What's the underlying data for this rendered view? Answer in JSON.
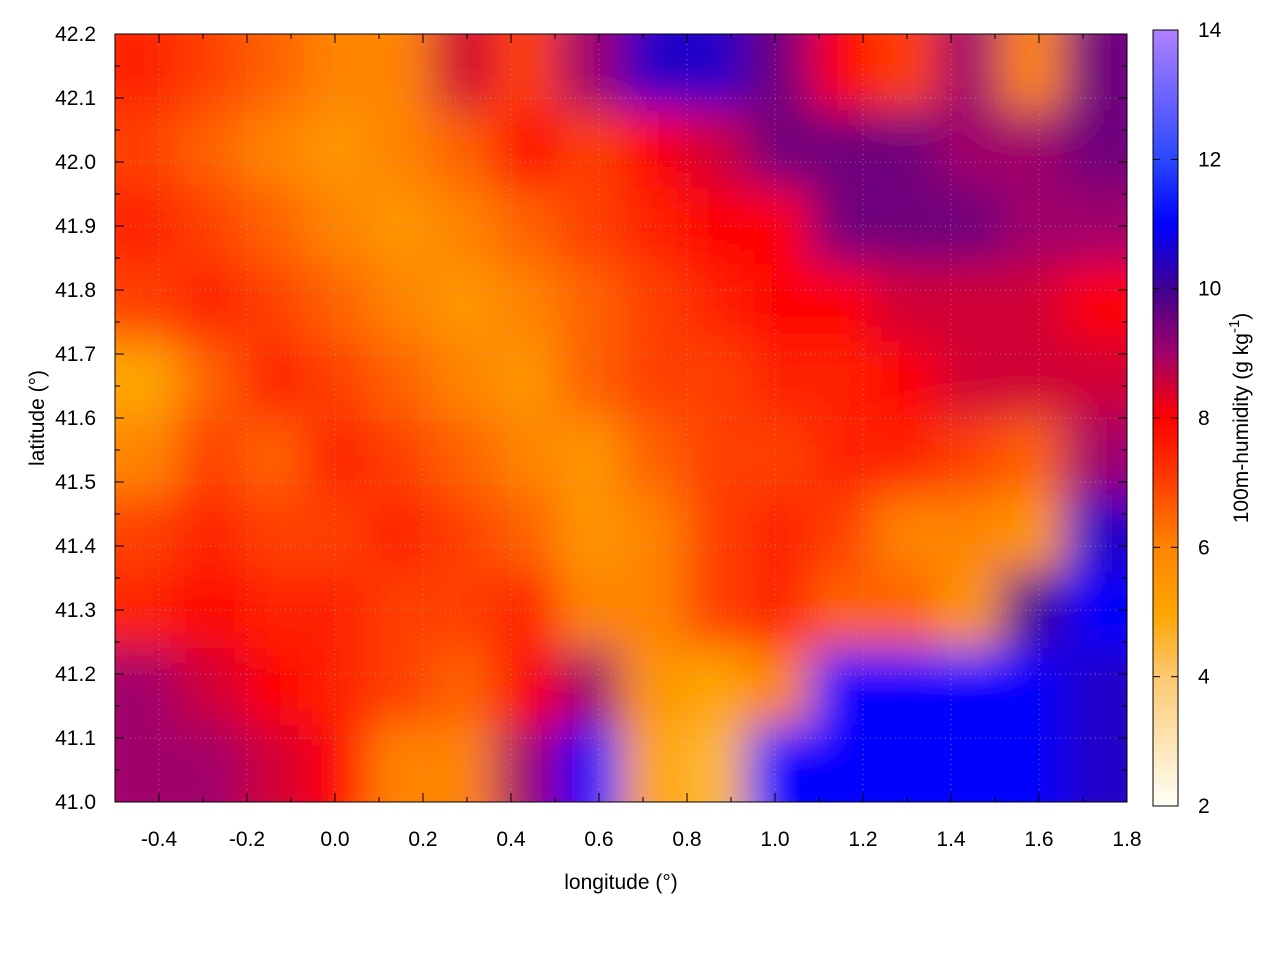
{
  "chart_data": {
    "type": "heatmap",
    "xlabel": "longitude (°)",
    "ylabel": "latitude (°)",
    "colorbar_label": "100m-humidity (g kg",
    "colorbar_label_sup": "-1",
    "colorbar_label_close": ")",
    "xlim": [
      -0.5,
      1.8
    ],
    "ylim": [
      41.0,
      42.2
    ],
    "clim": [
      2,
      14
    ],
    "xticks": [
      "-0.4",
      "-0.2",
      "0.0",
      "0.2",
      "0.4",
      "0.6",
      "0.8",
      "1.0",
      "1.2",
      "1.4",
      "1.6",
      "1.8"
    ],
    "yticks": [
      "41.0",
      "41.1",
      "41.2",
      "41.3",
      "41.4",
      "41.5",
      "41.6",
      "41.7",
      "41.8",
      "41.9",
      "42.0",
      "42.1",
      "42.2"
    ],
    "cticks": [
      "2",
      "4",
      "6",
      "8",
      "10",
      "12",
      "14"
    ],
    "grid": true,
    "contours": true,
    "palette": [
      {
        "v": 2,
        "color": "#fffff8"
      },
      {
        "v": 4,
        "color": "#fcc870"
      },
      {
        "v": 5,
        "color": "#ffa500"
      },
      {
        "v": 6,
        "color": "#ff8400"
      },
      {
        "v": 7,
        "color": "#ff4000"
      },
      {
        "v": 8,
        "color": "#ff0000"
      },
      {
        "v": 9,
        "color": "#a0006a"
      },
      {
        "v": 10,
        "color": "#400090"
      },
      {
        "v": 11,
        "color": "#0000ff"
      },
      {
        "v": 12,
        "color": "#2a48ff"
      },
      {
        "v": 14,
        "color": "#b080ff"
      }
    ],
    "grid_note_rows": "rows from north (42.2) to south (41.0), columns from west (-0.5) to east (1.8)",
    "values": [
      [
        7.5,
        7,
        6.5,
        6,
        6,
        8.5,
        7,
        9,
        10.5,
        10.5,
        9.5,
        8,
        7,
        9,
        6,
        9.5
      ],
      [
        7,
        6.5,
        6,
        5.5,
        6,
        6.5,
        8,
        7,
        8,
        8.5,
        9.5,
        9.5,
        9.5,
        9,
        9,
        9.5
      ],
      [
        7.5,
        7,
        6.5,
        6,
        5.5,
        6,
        6.5,
        7,
        7.5,
        8,
        8,
        9.5,
        9.5,
        9.5,
        9,
        9
      ],
      [
        7,
        7.5,
        7,
        6.5,
        6,
        5.5,
        6,
        6.5,
        7,
        7.5,
        8,
        8,
        8.5,
        8.5,
        8.5,
        8
      ],
      [
        5,
        6.5,
        7.5,
        7,
        6.5,
        6,
        5.5,
        6.5,
        7,
        7,
        7.5,
        7.5,
        8,
        8.5,
        8.5,
        8.5
      ],
      [
        6,
        7,
        6.5,
        7.5,
        7,
        6.5,
        6,
        5.5,
        6.5,
        7,
        7,
        7.5,
        7.5,
        7,
        6.5,
        9
      ],
      [
        7,
        7.5,
        7,
        7,
        7.5,
        7,
        6.5,
        5.5,
        6,
        7,
        7.5,
        7,
        6,
        6,
        5.5,
        10.5
      ],
      [
        7.5,
        8,
        7.5,
        7.5,
        7,
        7,
        7.5,
        6,
        6,
        7,
        7.5,
        6.5,
        6.5,
        5.5,
        10,
        11
      ],
      [
        9,
        8.5,
        8,
        7.5,
        7,
        6.5,
        8,
        9,
        5.5,
        5,
        6,
        11,
        11,
        11,
        11,
        10.5
      ],
      [
        9,
        9,
        8.5,
        8,
        6,
        6,
        9,
        11,
        5,
        4.5,
        11,
        11,
        11,
        11,
        11,
        10.5
      ]
    ]
  }
}
